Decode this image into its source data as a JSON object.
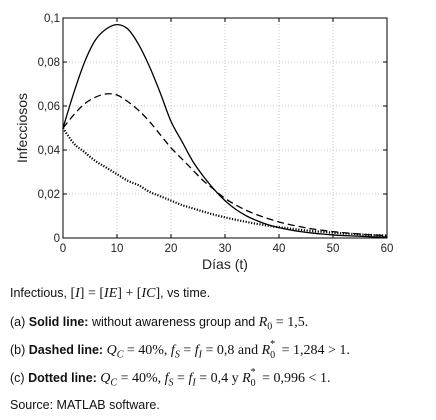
{
  "chart_data": {
    "type": "line",
    "xlabel": "Días (t)",
    "ylabel": "Infecciosos",
    "xlim": [
      0,
      60
    ],
    "ylim": [
      0,
      0.1
    ],
    "x_ticks": [
      0,
      10,
      20,
      30,
      40,
      50,
      60
    ],
    "x_tick_labels": [
      "0",
      "10",
      "20",
      "30",
      "40",
      "50",
      "60"
    ],
    "y_ticks": [
      0,
      0.02,
      0.04,
      0.06,
      0.08,
      0.1
    ],
    "y_tick_labels": [
      "0",
      "0,02",
      "0,04",
      "0,06",
      "0,08",
      "0,1"
    ],
    "grid": true,
    "x": [
      0,
      2,
      4,
      6,
      8,
      10,
      12,
      14,
      16,
      18,
      20,
      22,
      24,
      26,
      28,
      30,
      32,
      34,
      36,
      38,
      40,
      42,
      44,
      46,
      48,
      50,
      52,
      54,
      56,
      58,
      60
    ],
    "series": [
      {
        "style": "solid",
        "values": [
          0.05,
          0.066,
          0.08,
          0.09,
          0.095,
          0.097,
          0.095,
          0.088,
          0.078,
          0.066,
          0.053,
          0.044,
          0.035,
          0.028,
          0.022,
          0.017,
          0.013,
          0.01,
          0.0078,
          0.006,
          0.0047,
          0.0037,
          0.0029,
          0.0023,
          0.0018,
          0.0014,
          0.0011,
          0.0009,
          0.0007,
          0.0005,
          0.0004
        ]
      },
      {
        "style": "dashed",
        "values": [
          0.05,
          0.056,
          0.061,
          0.064,
          0.0655,
          0.065,
          0.062,
          0.058,
          0.053,
          0.047,
          0.041,
          0.036,
          0.031,
          0.026,
          0.022,
          0.018,
          0.015,
          0.0125,
          0.0105,
          0.0088,
          0.0073,
          0.0061,
          0.0051,
          0.0042,
          0.0035,
          0.0029,
          0.0024,
          0.002,
          0.0016,
          0.0013,
          0.0011
        ]
      },
      {
        "style": "dotted",
        "values": [
          0.05,
          0.043,
          0.039,
          0.035,
          0.032,
          0.029,
          0.026,
          0.024,
          0.021,
          0.019,
          0.017,
          0.015,
          0.0135,
          0.012,
          0.0106,
          0.0094,
          0.0083,
          0.0073,
          0.0064,
          0.0056,
          0.0049,
          0.0043,
          0.0037,
          0.0032,
          0.0028,
          0.0024,
          0.0021,
          0.0018,
          0.0015,
          0.0013,
          0.0011
        ]
      }
    ]
  },
  "caption": {
    "line1": {
      "a": "Infectious, ",
      "b": "[",
      "c": "I",
      "d": "] = [",
      "e": "IE",
      "f": "] + [",
      "g": "IC",
      "h": "]",
      "i": ", vs time."
    },
    "line2": {
      "a": "(a) ",
      "b": "Solid line:",
      "c": " without awareness group and ",
      "d": "R",
      "e": "0",
      "f": " = 1,5."
    },
    "line3": {
      "a": "(b) ",
      "b": "Dashed line:",
      "c": "Q",
      "d": "C",
      "e": " = 40%, ",
      "f": "f",
      "g": "S",
      "h": " = ",
      "i": "f",
      "j": "I",
      "k": " = 0,8 and ",
      "l": "R",
      "m": "*",
      "n": "0",
      "o": " = 1,284 > 1."
    },
    "line4": {
      "a": "(c) ",
      "b": "Dotted line:",
      "c": "Q",
      "d": "C",
      "e": " = 40%, ",
      "f": "f",
      "g": "S",
      "h": " = ",
      "i": "f",
      "j": "I",
      "k": " = 0,4 y ",
      "l": "R",
      "m": "*",
      "n": "0",
      "o": " = 0,996 < 1."
    },
    "source": "Source: MATLAB software."
  }
}
